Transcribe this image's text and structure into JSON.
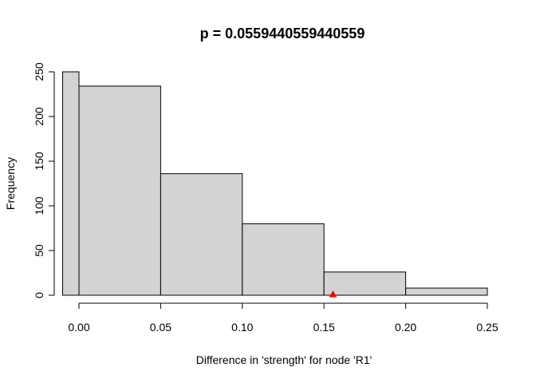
{
  "chart_data": {
    "type": "bar",
    "title": "p = 0.0559440559440559",
    "xlabel": "Difference in 'strength' for node 'R1'",
    "ylabel": "Frequency",
    "bins": [
      {
        "start": -0.01,
        "end": 0.0,
        "count": 250
      },
      {
        "start": 0.0,
        "end": 0.05,
        "count": 234
      },
      {
        "start": 0.05,
        "end": 0.1,
        "count": 136
      },
      {
        "start": 0.1,
        "end": 0.15,
        "count": 80
      },
      {
        "start": 0.15,
        "end": 0.2,
        "count": 26
      },
      {
        "start": 0.2,
        "end": 0.25,
        "count": 8
      }
    ],
    "x_ticks": [
      {
        "value": 0.0,
        "label": "0.00"
      },
      {
        "value": 0.05,
        "label": "0.05"
      },
      {
        "value": 0.1,
        "label": "0.10"
      },
      {
        "value": 0.15,
        "label": "0.15"
      },
      {
        "value": 0.2,
        "label": "0.20"
      },
      {
        "value": 0.25,
        "label": "0.25"
      }
    ],
    "y_ticks": [
      {
        "value": 0,
        "label": "0"
      },
      {
        "value": 50,
        "label": "50"
      },
      {
        "value": 100,
        "label": "100"
      },
      {
        "value": 150,
        "label": "150"
      },
      {
        "value": 200,
        "label": "200"
      },
      {
        "value": 250,
        "label": "250"
      }
    ],
    "xlim": [
      -0.01,
      0.25
    ],
    "ylim": [
      0,
      250
    ],
    "observed_marker": {
      "x": 0.1555,
      "y": 0,
      "shape": "triangle",
      "color": "#ff0000"
    },
    "bar_fill": "#d3d3d3",
    "grid": false
  }
}
